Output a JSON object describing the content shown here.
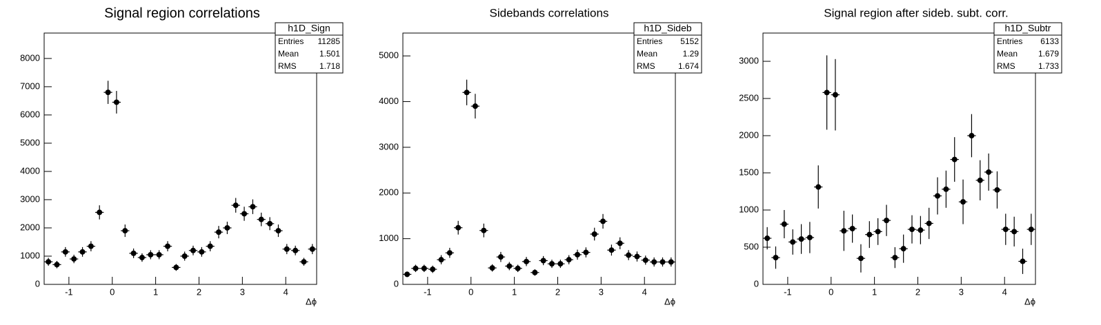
{
  "chart_data": [
    {
      "type": "errorbar",
      "title": "Signal region correlations",
      "x_label": "Δϕ",
      "stats": {
        "title": "h1D_Sign",
        "labels": [
          "Entries",
          "Mean",
          "RMS"
        ],
        "values": [
          11285,
          1.501,
          1.718
        ]
      },
      "x": [
        -1.473,
        -1.277,
        -1.08,
        -0.884,
        -0.687,
        -0.491,
        -0.295,
        -0.098,
        0.098,
        0.295,
        0.491,
        0.687,
        0.884,
        1.08,
        1.277,
        1.473,
        1.669,
        1.865,
        2.062,
        2.258,
        2.454,
        2.651,
        2.847,
        3.043,
        3.24,
        3.436,
        3.633,
        3.829,
        4.025,
        4.222,
        4.418,
        4.614
      ],
      "series": [
        {
          "color": "#000000",
          "values": [
            800,
            700,
            1150,
            900,
            1150,
            1350,
            2550,
            6800,
            6450,
            1900,
            1100,
            950,
            1050,
            1050,
            1350,
            600,
            1000,
            1200,
            1150,
            1350,
            1850,
            2000,
            2800,
            2500,
            2750,
            2300,
            2150,
            1900,
            1250,
            1200,
            800,
            1250
          ],
          "errors": [
            140,
            130,
            170,
            150,
            170,
            180,
            250,
            410,
            400,
            220,
            170,
            150,
            160,
            160,
            180,
            120,
            160,
            170,
            170,
            180,
            220,
            220,
            260,
            250,
            260,
            240,
            230,
            220,
            180,
            170,
            140,
            180
          ]
        }
      ],
      "xlim": [
        -1.5708,
        4.7124
      ],
      "xticks": [
        -1,
        0,
        1,
        2,
        3,
        4
      ],
      "ylim": [
        0,
        8900
      ],
      "yticks": [
        0,
        1000,
        2000,
        3000,
        4000,
        5000,
        6000,
        7000,
        8000
      ],
      "grid": false
    },
    {
      "type": "errorbar",
      "title": "Sidebands correlations",
      "x_label": "Δϕ",
      "stats": {
        "title": "h1D_Sideb",
        "labels": [
          "Entries",
          "Mean",
          "RMS"
        ],
        "values": [
          5152,
          1.29,
          1.674
        ]
      },
      "x": [
        -1.473,
        -1.277,
        -1.08,
        -0.884,
        -0.687,
        -0.491,
        -0.295,
        -0.098,
        0.098,
        0.295,
        0.491,
        0.687,
        0.884,
        1.08,
        1.277,
        1.473,
        1.669,
        1.865,
        2.062,
        2.258,
        2.454,
        2.651,
        2.847,
        3.043,
        3.24,
        3.436,
        3.633,
        3.829,
        4.025,
        4.222,
        4.418,
        4.614
      ],
      "series": [
        {
          "color": "#000000",
          "values": [
            220,
            350,
            350,
            330,
            540,
            690,
            1240,
            4200,
            3900,
            1180,
            360,
            600,
            400,
            350,
            500,
            260,
            520,
            450,
            450,
            540,
            650,
            700,
            1100,
            1380,
            750,
            900,
            640,
            610,
            530,
            490,
            490,
            490
          ],
          "errors": [
            60,
            80,
            80,
            80,
            100,
            110,
            150,
            280,
            270,
            150,
            80,
            110,
            90,
            80,
            100,
            70,
            100,
            90,
            90,
            100,
            110,
            110,
            140,
            160,
            120,
            130,
            110,
            110,
            100,
            100,
            100,
            100
          ]
        }
      ],
      "xlim": [
        -1.5708,
        4.7124
      ],
      "xticks": [
        -1,
        0,
        1,
        2,
        3,
        4
      ],
      "ylim": [
        0,
        5500
      ],
      "yticks": [
        0,
        1000,
        2000,
        3000,
        4000,
        5000
      ],
      "grid": false
    },
    {
      "type": "errorbar",
      "title": "Signal region after sideb. subt. corr.",
      "x_label": "Δϕ",
      "stats": {
        "title": "h1D_Subtr",
        "labels": [
          "Entries",
          "Mean",
          "RMS"
        ],
        "values": [
          6133,
          1.679,
          1.733
        ]
      },
      "x": [
        -1.473,
        -1.277,
        -1.08,
        -0.884,
        -0.687,
        -0.491,
        -0.295,
        -0.098,
        0.098,
        0.295,
        0.491,
        0.687,
        0.884,
        1.08,
        1.277,
        1.473,
        1.669,
        1.865,
        2.062,
        2.258,
        2.454,
        2.651,
        2.847,
        3.043,
        3.24,
        3.436,
        3.633,
        3.829,
        4.025,
        4.222,
        4.418,
        4.614
      ],
      "series": [
        {
          "color": "#000000",
          "values": [
            620,
            360,
            810,
            570,
            610,
            630,
            1310,
            2580,
            2550,
            720,
            750,
            350,
            670,
            710,
            860,
            360,
            480,
            740,
            730,
            820,
            1190,
            1280,
            1680,
            1110,
            2000,
            1400,
            1510,
            1270,
            740,
            710,
            310,
            740
          ],
          "errors": [
            150,
            150,
            190,
            170,
            200,
            210,
            290,
            500,
            480,
            270,
            190,
            190,
            180,
            180,
            210,
            140,
            190,
            190,
            190,
            210,
            250,
            250,
            300,
            300,
            290,
            270,
            250,
            250,
            210,
            200,
            170,
            210
          ]
        }
      ],
      "xlim": [
        -1.5708,
        4.7124
      ],
      "xticks": [
        -1,
        0,
        1,
        2,
        3,
        4
      ],
      "ylim": [
        0,
        3380
      ],
      "yticks": [
        0,
        500,
        1000,
        1500,
        2000,
        2500,
        3000
      ],
      "grid": false
    }
  ]
}
